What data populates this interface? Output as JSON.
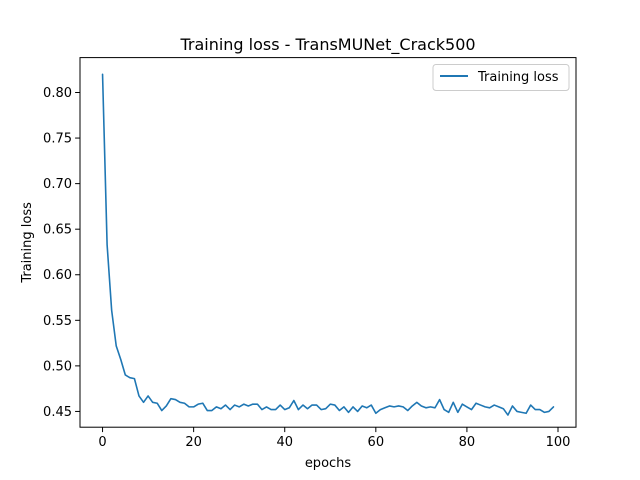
{
  "chart_data": {
    "type": "line",
    "title": "Training loss - TransMUNet_Crack500",
    "xlabel": "epochs",
    "ylabel": "Training loss",
    "xlim": [
      -4.95,
      103.95
    ],
    "ylim": [
      0.4327,
      0.8383
    ],
    "xticks": [
      0,
      20,
      40,
      60,
      80,
      100
    ],
    "xtick_labels": [
      "0",
      "20",
      "40",
      "60",
      "80",
      "100"
    ],
    "yticks": [
      0.45,
      0.5,
      0.55,
      0.6,
      0.65,
      0.7,
      0.75,
      0.8
    ],
    "ytick_labels": [
      "0.45",
      "0.50",
      "0.55",
      "0.60",
      "0.65",
      "0.70",
      "0.75",
      "0.80"
    ],
    "grid": false,
    "legend_position": "upper right",
    "series": [
      {
        "name": "Training loss",
        "color": "#1f77b4",
        "x": [
          0,
          1,
          2,
          3,
          4,
          5,
          6,
          7,
          8,
          9,
          10,
          11,
          12,
          13,
          14,
          15,
          16,
          17,
          18,
          19,
          20,
          21,
          22,
          23,
          24,
          25,
          26,
          27,
          28,
          29,
          30,
          31,
          32,
          33,
          34,
          35,
          36,
          37,
          38,
          39,
          40,
          41,
          42,
          43,
          44,
          45,
          46,
          47,
          48,
          49,
          50,
          51,
          52,
          53,
          54,
          55,
          56,
          57,
          58,
          59,
          60,
          61,
          62,
          63,
          64,
          65,
          66,
          67,
          68,
          69,
          70,
          71,
          72,
          73,
          74,
          75,
          76,
          77,
          78,
          79,
          80,
          81,
          82,
          83,
          84,
          85,
          86,
          87,
          88,
          89,
          90,
          91,
          92,
          93,
          94,
          95,
          96,
          97,
          98,
          99
        ],
        "values": [
          0.82,
          0.633,
          0.561,
          0.522,
          0.507,
          0.49,
          0.487,
          0.486,
          0.467,
          0.46,
          0.467,
          0.46,
          0.459,
          0.451,
          0.456,
          0.464,
          0.463,
          0.46,
          0.459,
          0.455,
          0.455,
          0.458,
          0.459,
          0.451,
          0.451,
          0.455,
          0.453,
          0.457,
          0.452,
          0.457,
          0.455,
          0.458,
          0.456,
          0.458,
          0.458,
          0.452,
          0.455,
          0.452,
          0.452,
          0.457,
          0.452,
          0.454,
          0.462,
          0.452,
          0.457,
          0.453,
          0.457,
          0.457,
          0.452,
          0.453,
          0.458,
          0.457,
          0.451,
          0.455,
          0.449,
          0.455,
          0.45,
          0.456,
          0.454,
          0.457,
          0.448,
          0.452,
          0.454,
          0.456,
          0.455,
          0.456,
          0.455,
          0.451,
          0.456,
          0.46,
          0.456,
          0.454,
          0.455,
          0.454,
          0.463,
          0.452,
          0.449,
          0.46,
          0.449,
          0.458,
          0.455,
          0.452,
          0.459,
          0.457,
          0.455,
          0.454,
          0.457,
          0.455,
          0.453,
          0.446,
          0.456,
          0.45,
          0.449,
          0.448,
          0.457,
          0.452,
          0.452,
          0.449,
          0.45,
          0.455
        ]
      }
    ]
  }
}
